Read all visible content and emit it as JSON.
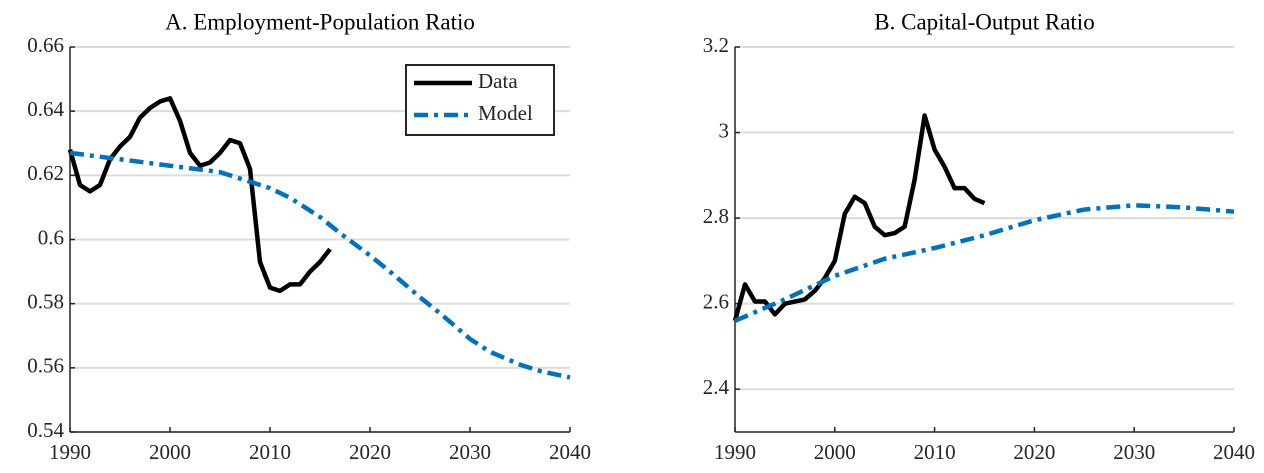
{
  "chart_data": [
    {
      "type": "line",
      "title": "A. Employment-Population Ratio",
      "xlim": [
        1990,
        2040
      ],
      "xticks": [
        1990,
        2000,
        2010,
        2020,
        2030,
        2040
      ],
      "ylim": [
        0.54,
        0.66
      ],
      "yticks": [
        0.54,
        0.56,
        0.58,
        0.6,
        0.62,
        0.64,
        0.66
      ],
      "grid": true,
      "legend": "northeast",
      "series": [
        {
          "name": "Data",
          "color": "#000000",
          "dash": "solid",
          "x": [
            1990,
            1991,
            1992,
            1993,
            1994,
            1995,
            1996,
            1997,
            1998,
            1999,
            2000,
            2001,
            2002,
            2003,
            2004,
            2005,
            2006,
            2007,
            2008,
            2009,
            2010,
            2011,
            2012,
            2013,
            2014,
            2015,
            2016
          ],
          "values": [
            0.628,
            0.617,
            0.615,
            0.617,
            0.625,
            0.629,
            0.632,
            0.638,
            0.641,
            0.643,
            0.644,
            0.637,
            0.627,
            0.623,
            0.624,
            0.627,
            0.631,
            0.63,
            0.622,
            0.593,
            0.585,
            0.584,
            0.586,
            0.586,
            0.59,
            0.593,
            0.597
          ]
        },
        {
          "name": "Model",
          "color": "#0072bd",
          "dash": "dashdot",
          "x": [
            1990,
            1995,
            2000,
            2005,
            2008,
            2010,
            2012,
            2015,
            2017,
            2020,
            2022,
            2025,
            2027,
            2030,
            2032,
            2035,
            2037,
            2040
          ],
          "values": [
            0.627,
            0.625,
            0.623,
            0.621,
            0.618,
            0.616,
            0.613,
            0.607,
            0.602,
            0.595,
            0.59,
            0.582,
            0.577,
            0.569,
            0.565,
            0.561,
            0.559,
            0.557
          ]
        }
      ]
    },
    {
      "type": "line",
      "title": "B. Capital-Output Ratio",
      "xlim": [
        1990,
        2040
      ],
      "xticks": [
        1990,
        2000,
        2010,
        2020,
        2030,
        2040
      ],
      "ylim": [
        2.3,
        3.2
      ],
      "yticks": [
        2.4,
        2.6,
        2.8,
        3,
        3.2
      ],
      "grid": true,
      "legend": false,
      "series": [
        {
          "color": "#000000",
          "dash": "solid",
          "x": [
            1990,
            1991,
            1992,
            1993,
            1994,
            1995,
            1996,
            1997,
            1998,
            1999,
            2000,
            2001,
            2002,
            2003,
            2004,
            2005,
            2006,
            2007,
            2008,
            2009,
            2010,
            2011,
            2012,
            2013,
            2014,
            2015
          ],
          "values": [
            2.56,
            2.645,
            2.605,
            2.605,
            2.575,
            2.6,
            2.605,
            2.61,
            2.63,
            2.66,
            2.7,
            2.81,
            2.85,
            2.835,
            2.78,
            2.76,
            2.765,
            2.78,
            2.89,
            3.04,
            2.96,
            2.92,
            2.87,
            2.87,
            2.845,
            2.835
          ]
        },
        {
          "color": "#0072bd",
          "dash": "dashdot",
          "x": [
            1990,
            1995,
            2000,
            2005,
            2010,
            2015,
            2020,
            2025,
            2030,
            2035,
            2040
          ],
          "values": [
            2.56,
            2.61,
            2.665,
            2.705,
            2.73,
            2.76,
            2.795,
            2.82,
            2.83,
            2.825,
            2.815
          ]
        }
      ]
    }
  ]
}
